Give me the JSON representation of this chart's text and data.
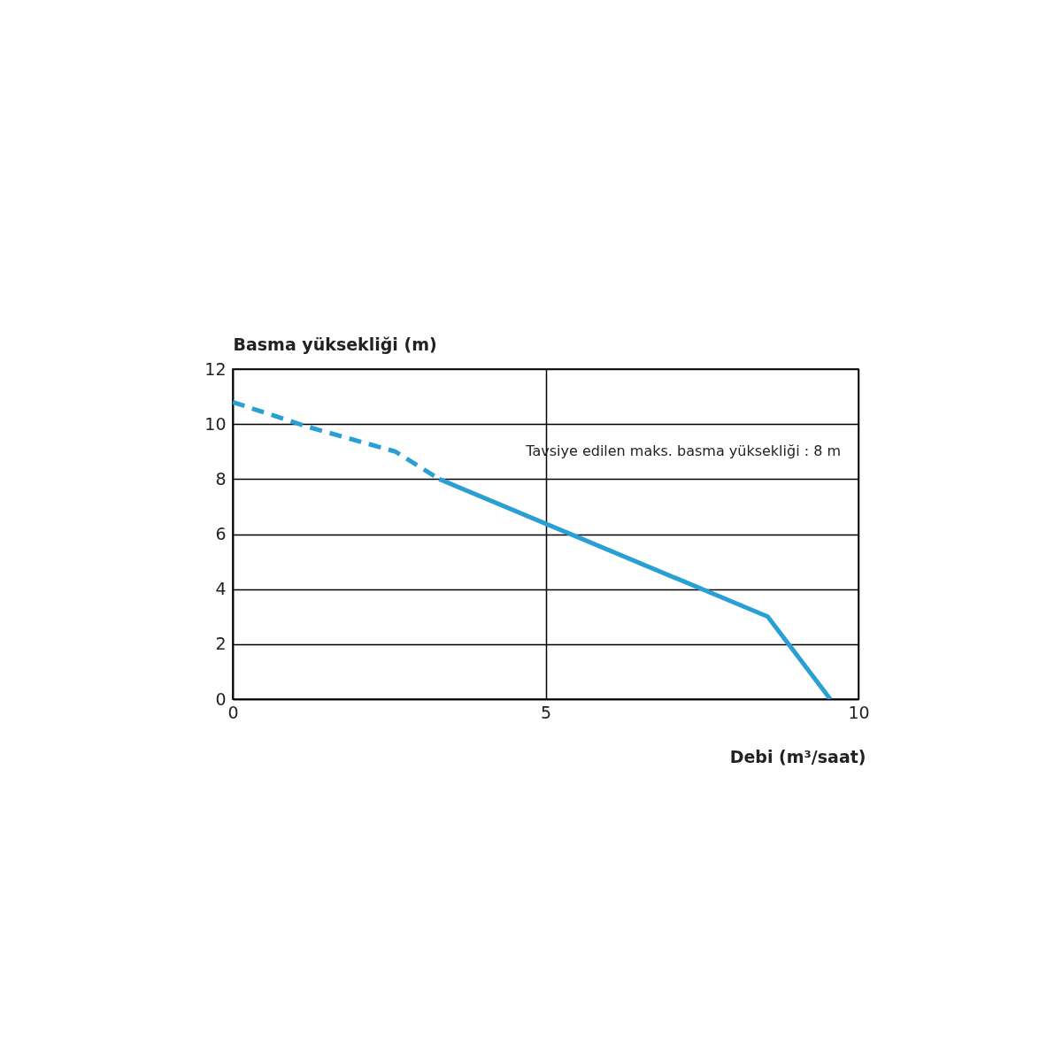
{
  "chart_data": {
    "type": "line",
    "xlabel": "Debi (m³/saat)",
    "ylabel": "Basma yüksekliği (m)",
    "xlim": [
      0,
      10
    ],
    "xticks": [
      0,
      5,
      10
    ],
    "ylim": [
      0,
      12
    ],
    "yticks": [
      0,
      2,
      4,
      6,
      8,
      10,
      12
    ],
    "grid": true,
    "marker": "none",
    "series": [
      {
        "color": "#2a9fd4",
        "line_style": "dashed",
        "x": [
          0,
          1.2,
          2.6,
          3.3
        ],
        "values": [
          10.8,
          9.9,
          9.0,
          8.0
        ]
      },
      {
        "color": "#2a9fd4",
        "line_style": "solid",
        "x": [
          3.3,
          8.55,
          9.55
        ],
        "values": [
          8.0,
          3.0,
          0
        ]
      }
    ],
    "annotations": [
      "Tavsiye edilen maks. basma yüksekliği : 8 m"
    ]
  }
}
